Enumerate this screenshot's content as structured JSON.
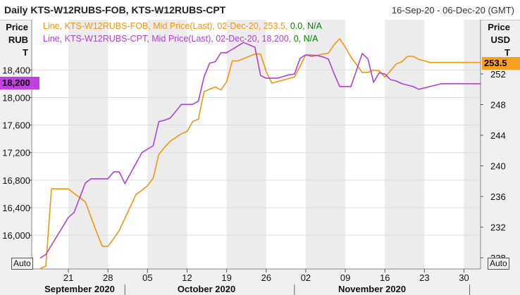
{
  "header": {
    "title": "Daily KTS-W12RUBS-FOB, KTS-W12RUBS-CPT",
    "date_range": "16-Sep-20 - 06-Dec-20 (GMT)"
  },
  "left_axis_caption": [
    "Price",
    "RUB",
    "T"
  ],
  "right_axis_caption": [
    "Price",
    "USD",
    "T"
  ],
  "auto_left": "Auto",
  "auto_right": "Auto",
  "badges": {
    "left": "18,200",
    "right": "253.5"
  },
  "colors": {
    "fob": "#f0960f",
    "cpt": "#b040d8",
    "badge_left": "#c040e0",
    "badge_right": "#f5a020",
    "legend_green": "#008000"
  },
  "chart_data": {
    "type": "line",
    "title": "Daily KTS-W12RUBS-FOB, KTS-W12RUBS-CPT",
    "x_range": [
      "2020-09-16",
      "2020-12-06"
    ],
    "x_tick_labels": [
      "21",
      "28",
      "05",
      "12",
      "19",
      "26",
      "02",
      "09",
      "16",
      "23",
      "30"
    ],
    "month_labels": [
      "September 2020",
      "October 2020",
      "November 2020"
    ],
    "left_axis": {
      "label": "Price RUB T",
      "ticks": [
        16000,
        16400,
        16800,
        17200,
        17600,
        18000,
        18400
      ]
    },
    "right_axis": {
      "label": "Price USD T",
      "ticks": [
        228,
        232,
        236,
        240,
        244,
        248,
        252
      ]
    },
    "legend": [
      {
        "name": "FOB",
        "parts": [
          "Line, KTS-W12RUBS-FOB, Mid Price(Last), 02-Dec-20, 253.5, ",
          "0.0",
          ", ",
          "N/A"
        ]
      },
      {
        "name": "CPT",
        "parts": [
          "Line, KTS-W12RUBS-CPT, Mid Price(Last), 02-Dec-20, 18,200, ",
          "0",
          ", ",
          "N/A"
        ]
      }
    ],
    "series": [
      {
        "name": "KTS-W12RUBS-FOB",
        "axis": "right",
        "unit": "USD",
        "x": [
          0,
          1,
          2,
          5,
          6,
          8,
          9,
          10,
          11,
          12,
          13,
          14,
          17,
          18,
          19,
          20,
          21,
          22,
          23,
          24,
          25,
          26,
          27,
          28,
          29,
          30,
          31,
          32,
          33,
          34,
          35,
          36,
          38,
          39,
          40,
          41,
          43,
          44,
          45,
          46,
          47,
          48,
          49,
          50,
          51,
          52,
          53,
          54,
          55,
          56,
          57,
          58,
          59,
          60,
          61,
          62,
          63,
          64,
          65,
          66,
          67,
          68,
          69,
          70,
          71,
          72,
          73,
          74,
          75,
          76,
          77,
          78
        ],
        "values": [
          226.6,
          226.9,
          237.0,
          237.0,
          236.4,
          235.3,
          233.3,
          231.3,
          229.5,
          229.5,
          230.5,
          231.6,
          236.3,
          236.8,
          237.4,
          238.4,
          241.5,
          242.4,
          243.2,
          243.7,
          244.2,
          244.5,
          245.8,
          246.1,
          249.7,
          250.0,
          250.3,
          249.9,
          251.0,
          253.7,
          253.7,
          254.0,
          254.6,
          254.6,
          252.3,
          250.8,
          251.2,
          251.4,
          251.6,
          253.0,
          254.5,
          254.5,
          254.4,
          254.6,
          254.7,
          255.8,
          256.6,
          255.5,
          254.2,
          253.2,
          252.2,
          252.2,
          252.5,
          252.4,
          251.6,
          252.4,
          253.3,
          253.6,
          254.3,
          254.3,
          253.9,
          253.7,
          253.5,
          253.5,
          253.5,
          253.5,
          253.5,
          253.5,
          253.5,
          253.5,
          253.5,
          253.5
        ]
      },
      {
        "name": "KTS-W12RUBS-CPT",
        "axis": "left",
        "unit": "RUB",
        "x": [
          0,
          1,
          5,
          6,
          8,
          9,
          10,
          11,
          12,
          13,
          14,
          15,
          17,
          18,
          20,
          21,
          22,
          23,
          25,
          26,
          27,
          28,
          29,
          30,
          31,
          32,
          33,
          34,
          36,
          38,
          39,
          40,
          41,
          42,
          44,
          45,
          46,
          47,
          48,
          49,
          50,
          51,
          52,
          53,
          54,
          55,
          56,
          57,
          58,
          59,
          60,
          61,
          62,
          63,
          64,
          65,
          66,
          67,
          68,
          69,
          70,
          71,
          72,
          73,
          74,
          75,
          76,
          77,
          78
        ],
        "values": [
          15670,
          15720,
          16260,
          16330,
          16760,
          16820,
          16820,
          16820,
          16820,
          16920,
          16920,
          16750,
          17050,
          17200,
          17300,
          17650,
          17670,
          17700,
          17900,
          17900,
          17900,
          17950,
          18300,
          18500,
          18520,
          18650,
          18650,
          18700,
          18800,
          18730,
          18320,
          18280,
          18280,
          18280,
          18330,
          18340,
          18570,
          18620,
          18600,
          18610,
          18590,
          18560,
          18350,
          18160,
          18160,
          18160,
          18400,
          18640,
          18560,
          18220,
          18360,
          18340,
          18260,
          18240,
          18200,
          18180,
          18160,
          18120,
          18140,
          18160,
          18180,
          18200,
          18200,
          18200,
          18200,
          18200,
          18200,
          18200,
          18200
        ]
      }
    ]
  }
}
